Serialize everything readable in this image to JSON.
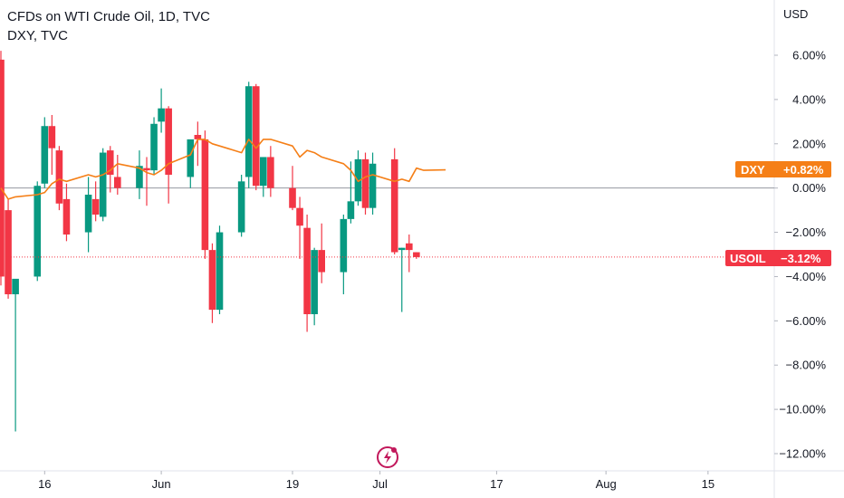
{
  "header": {
    "title": "CFDs on WTI Crude Oil, 1D, TVC",
    "secondary": "DXY, TVC"
  },
  "axis": {
    "currency": "USD"
  },
  "badges": {
    "dxy": {
      "symbol": "DXY",
      "value": "+0.82%",
      "color": "#f57f17"
    },
    "usoil": {
      "symbol": "USOIL",
      "value": "−3.12%",
      "color": "#f23645"
    }
  },
  "colors": {
    "up": "#089981",
    "down": "#f23645",
    "dxy_line": "#f57f17",
    "zero_line": "#9598a1",
    "last_price_line": "#f23645"
  },
  "icon": {
    "name": "lightning-logo-icon"
  },
  "chart_data": {
    "type": "candlestick",
    "ylim": [
      -12.5,
      6.5
    ],
    "y_ticks": [
      {
        "v": 6,
        "label": "6.00%"
      },
      {
        "v": 4,
        "label": "4.00%"
      },
      {
        "v": 2,
        "label": "2.00%"
      },
      {
        "v": 0,
        "label": "0.00%"
      },
      {
        "v": -2,
        "label": "−2.00%"
      },
      {
        "v": -4,
        "label": "−4.00%"
      },
      {
        "v": -6,
        "label": "−6.00%"
      },
      {
        "v": -8,
        "label": "−8.00%"
      },
      {
        "v": -10,
        "label": "−10.00%"
      },
      {
        "v": -12,
        "label": "−12.00%"
      }
    ],
    "x_ticks": [
      {
        "date": "2023-05-16",
        "label": "16"
      },
      {
        "date": "2023-06-01",
        "label": "Jun"
      },
      {
        "date": "2023-06-19",
        "label": "19"
      },
      {
        "date": "2023-07-01",
        "label": "Jul"
      },
      {
        "date": "2023-07-17",
        "label": "17"
      },
      {
        "date": "2023-08-01",
        "label": "Aug"
      },
      {
        "date": "2023-08-15",
        "label": "15"
      }
    ],
    "usoil": [
      {
        "date": "2023-05-10",
        "o": 5.8,
        "h": 6.2,
        "l": -4.4,
        "c": -4.0
      },
      {
        "date": "2023-05-11",
        "o": -1.0,
        "h": -0.5,
        "l": -5.0,
        "c": -4.8
      },
      {
        "date": "2023-05-12",
        "o": -4.8,
        "h": -4.2,
        "l": -11.0,
        "c": -4.1
      },
      {
        "date": "2023-05-15",
        "o": -4.0,
        "h": 0.3,
        "l": -4.2,
        "c": 0.1
      },
      {
        "date": "2023-05-16",
        "o": 0.2,
        "h": 3.2,
        "l": 0.0,
        "c": 2.8
      },
      {
        "date": "2023-05-17",
        "o": 2.8,
        "h": 3.3,
        "l": 0.6,
        "c": 1.8
      },
      {
        "date": "2023-05-18",
        "o": 1.7,
        "h": 1.9,
        "l": -1.0,
        "c": -0.7
      },
      {
        "date": "2023-05-19",
        "o": -0.5,
        "h": 0.2,
        "l": -2.4,
        "c": -2.1
      },
      {
        "date": "2023-05-22",
        "o": -2.0,
        "h": 0.5,
        "l": -2.9,
        "c": -0.3
      },
      {
        "date": "2023-05-23",
        "o": -0.5,
        "h": 0.3,
        "l": -1.5,
        "c": -1.2
      },
      {
        "date": "2023-05-24",
        "o": -1.3,
        "h": 1.8,
        "l": -1.5,
        "c": 1.6
      },
      {
        "date": "2023-05-25",
        "o": 1.7,
        "h": 1.9,
        "l": -0.2,
        "c": 0.6
      },
      {
        "date": "2023-05-26",
        "o": 0.5,
        "h": 1.5,
        "l": -0.3,
        "c": 0.0
      },
      {
        "date": "2023-05-29",
        "o": 0.0,
        "h": 1.7,
        "l": -0.5,
        "c": 1.0
      },
      {
        "date": "2023-05-30",
        "o": 0.9,
        "h": 1.4,
        "l": -0.8,
        "c": 0.8
      },
      {
        "date": "2023-05-31",
        "o": 0.8,
        "h": 3.2,
        "l": 0.6,
        "c": 2.9
      },
      {
        "date": "2023-06-01",
        "o": 3.0,
        "h": 4.5,
        "l": 2.5,
        "c": 3.6
      },
      {
        "date": "2023-06-02",
        "o": 3.6,
        "h": 3.7,
        "l": -0.7,
        "c": 0.6
      },
      {
        "date": "2023-06-05",
        "o": 0.5,
        "h": 2.0,
        "l": 0.0,
        "c": 2.2
      },
      {
        "date": "2023-06-06",
        "o": 2.4,
        "h": 3.0,
        "l": 1.0,
        "c": 2.2
      },
      {
        "date": "2023-06-07",
        "o": 2.2,
        "h": 2.6,
        "l": -3.2,
        "c": -2.8
      },
      {
        "date": "2023-06-08",
        "o": -2.8,
        "h": -2.5,
        "l": -6.1,
        "c": -5.5
      },
      {
        "date": "2023-06-09",
        "o": -5.5,
        "h": -1.7,
        "l": -5.7,
        "c": -2.0
      },
      {
        "date": "2023-06-12",
        "o": -2.0,
        "h": 0.6,
        "l": -2.2,
        "c": 0.3
      },
      {
        "date": "2023-06-13",
        "o": 0.5,
        "h": 4.8,
        "l": 0.0,
        "c": 4.6
      },
      {
        "date": "2023-06-14",
        "o": 4.6,
        "h": 4.7,
        "l": -0.1,
        "c": 0.1
      },
      {
        "date": "2023-06-15",
        "o": 0.1,
        "h": 1.0,
        "l": -0.4,
        "c": 1.4
      },
      {
        "date": "2023-06-16",
        "o": 1.4,
        "h": 1.9,
        "l": -0.4,
        "c": 0.0
      },
      {
        "date": "2023-06-19",
        "o": 0.0,
        "h": 1.0,
        "l": -1.0,
        "c": -0.9
      },
      {
        "date": "2023-06-20",
        "o": -0.9,
        "h": -0.4,
        "l": -3.2,
        "c": -1.7
      },
      {
        "date": "2023-06-21",
        "o": -1.8,
        "h": -1.2,
        "l": -6.5,
        "c": -5.7
      },
      {
        "date": "2023-06-22",
        "o": -5.7,
        "h": -2.7,
        "l": -6.2,
        "c": -2.8
      },
      {
        "date": "2023-06-23",
        "o": -2.8,
        "h": -1.6,
        "l": -4.3,
        "c": -3.8
      },
      {
        "date": "2023-06-26",
        "o": -3.8,
        "h": -1.2,
        "l": -4.8,
        "c": -1.4
      },
      {
        "date": "2023-06-27",
        "o": -1.4,
        "h": 1.2,
        "l": -1.6,
        "c": -0.6
      },
      {
        "date": "2023-06-28",
        "o": -0.6,
        "h": 1.7,
        "l": -0.8,
        "c": 1.3
      },
      {
        "date": "2023-06-29",
        "o": 1.3,
        "h": 1.6,
        "l": -1.2,
        "c": -0.9
      },
      {
        "date": "2023-06-30",
        "o": -0.9,
        "h": 1.6,
        "l": -1.2,
        "c": 1.1
      },
      {
        "date": "2023-07-03",
        "o": 1.3,
        "h": 1.8,
        "l": -3.0,
        "c": -2.9
      },
      {
        "date": "2023-07-04",
        "o": -2.8,
        "h": -2.7,
        "l": -5.6,
        "c": -2.7
      },
      {
        "date": "2023-07-05",
        "o": -2.5,
        "h": -2.1,
        "l": -3.8,
        "c": -2.8
      },
      {
        "date": "2023-07-06",
        "o": -2.9,
        "h": -2.9,
        "l": -3.2,
        "c": -3.12
      }
    ],
    "dxy": [
      {
        "date": "2023-05-10",
        "v": 0.0
      },
      {
        "date": "2023-05-11",
        "v": -0.5
      },
      {
        "date": "2023-05-12",
        "v": -0.4
      },
      {
        "date": "2023-05-15",
        "v": -0.3
      },
      {
        "date": "2023-05-16",
        "v": -0.2
      },
      {
        "date": "2023-05-17",
        "v": 0.2
      },
      {
        "date": "2023-05-18",
        "v": 0.4
      },
      {
        "date": "2023-05-19",
        "v": 0.3
      },
      {
        "date": "2023-05-22",
        "v": 0.6
      },
      {
        "date": "2023-05-23",
        "v": 0.5
      },
      {
        "date": "2023-05-24",
        "v": 0.6
      },
      {
        "date": "2023-05-25",
        "v": 0.8
      },
      {
        "date": "2023-05-26",
        "v": 1.1
      },
      {
        "date": "2023-05-29",
        "v": 0.9
      },
      {
        "date": "2023-05-30",
        "v": 0.7
      },
      {
        "date": "2023-05-31",
        "v": 0.6
      },
      {
        "date": "2023-06-01",
        "v": 0.8
      },
      {
        "date": "2023-06-02",
        "v": 1.1
      },
      {
        "date": "2023-06-05",
        "v": 1.5
      },
      {
        "date": "2023-06-06",
        "v": 2.2
      },
      {
        "date": "2023-06-07",
        "v": 2.2
      },
      {
        "date": "2023-06-08",
        "v": 2.0
      },
      {
        "date": "2023-06-09",
        "v": 1.9
      },
      {
        "date": "2023-06-12",
        "v": 1.6
      },
      {
        "date": "2023-06-13",
        "v": 2.2
      },
      {
        "date": "2023-06-14",
        "v": 1.8
      },
      {
        "date": "2023-06-15",
        "v": 2.2
      },
      {
        "date": "2023-06-16",
        "v": 2.2
      },
      {
        "date": "2023-06-19",
        "v": 1.9
      },
      {
        "date": "2023-06-20",
        "v": 1.4
      },
      {
        "date": "2023-06-21",
        "v": 1.7
      },
      {
        "date": "2023-06-22",
        "v": 1.6
      },
      {
        "date": "2023-06-23",
        "v": 1.4
      },
      {
        "date": "2023-06-26",
        "v": 1.1
      },
      {
        "date": "2023-06-27",
        "v": 0.8
      },
      {
        "date": "2023-06-28",
        "v": 0.3
      },
      {
        "date": "2023-06-29",
        "v": 0.5
      },
      {
        "date": "2023-06-30",
        "v": 0.6
      },
      {
        "date": "2023-07-03",
        "v": 0.3
      },
      {
        "date": "2023-07-04",
        "v": 0.4
      },
      {
        "date": "2023-07-05",
        "v": 0.3
      },
      {
        "date": "2023-07-06",
        "v": 0.9
      },
      {
        "date": "2023-07-07",
        "v": 0.8
      },
      {
        "date": "2023-07-10",
        "v": 0.82
      }
    ]
  }
}
